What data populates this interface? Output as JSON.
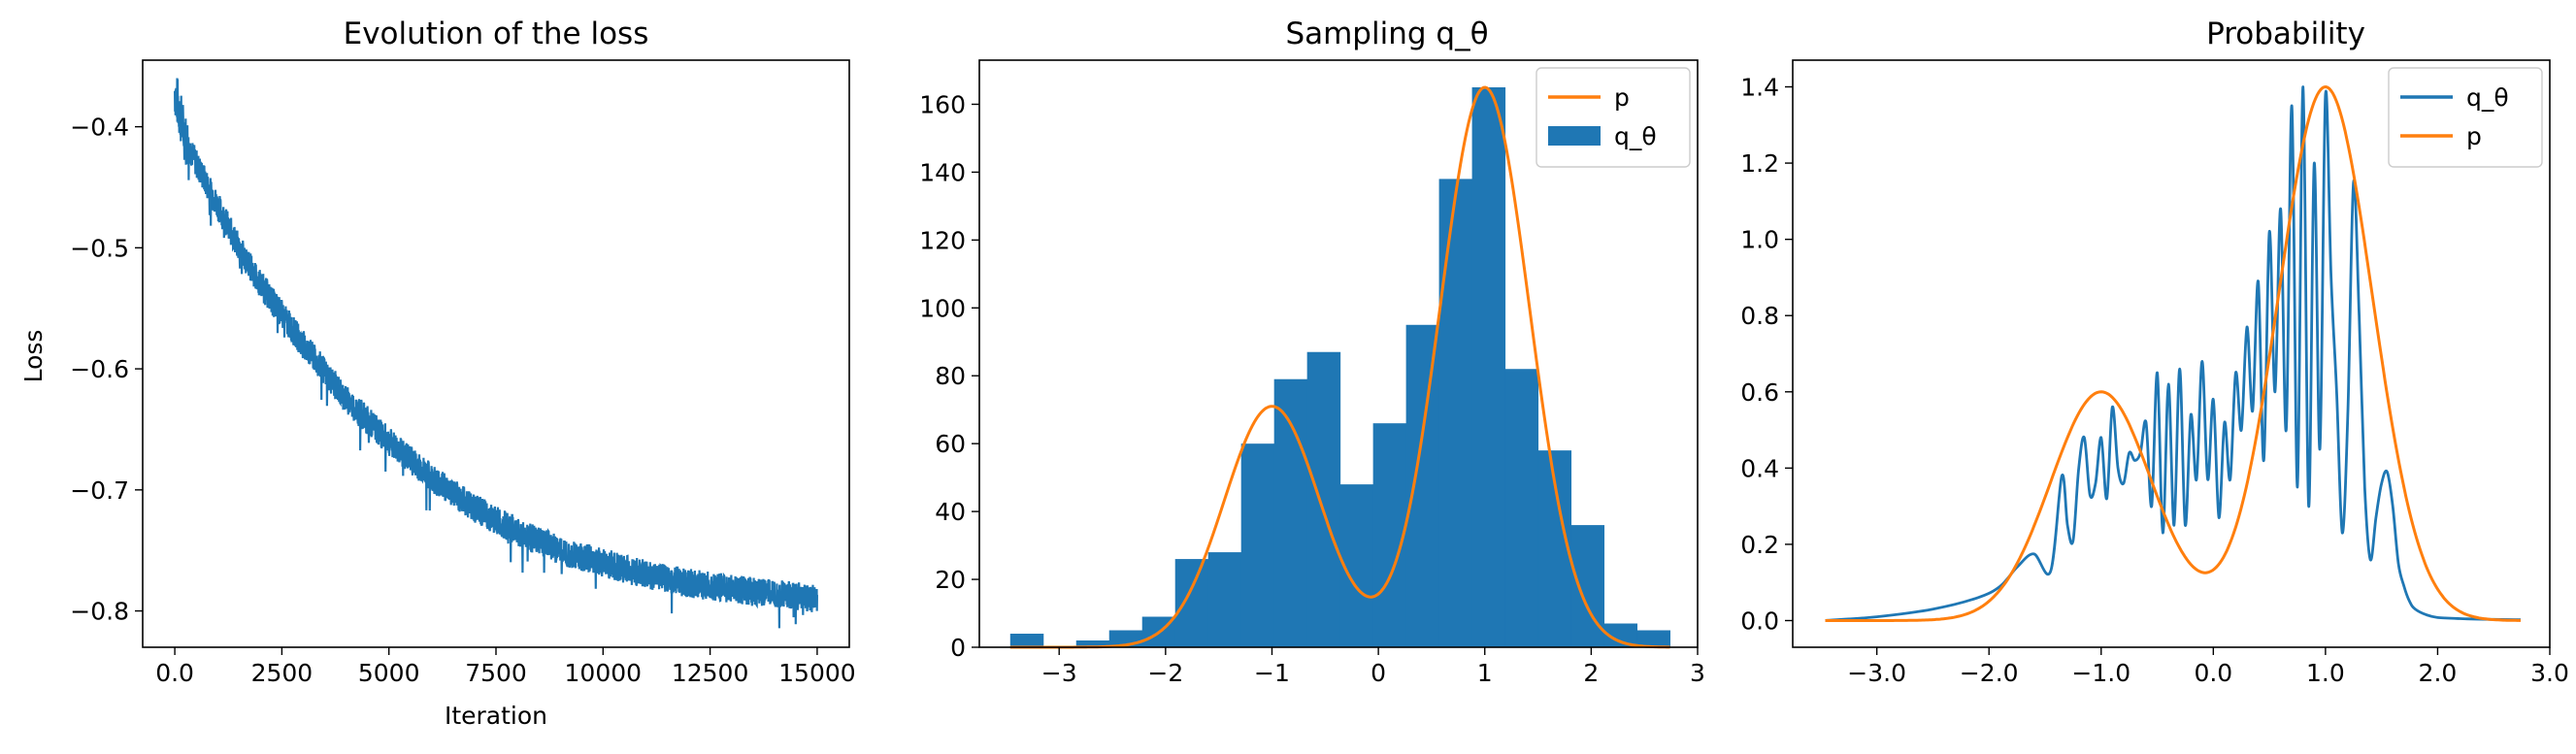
{
  "colors": {
    "blue": "#1f77b4",
    "orange": "#ff7f0e"
  },
  "chart_data": [
    {
      "type": "line",
      "title": "Evolution of the loss",
      "xlabel": "Iteration",
      "ylabel": "Loss",
      "xlim": [
        -750,
        15750
      ],
      "ylim": [
        -0.83,
        -0.345
      ],
      "xticks": [
        0,
        2500,
        5000,
        7500,
        10000,
        12500,
        15000
      ],
      "yticks": [
        -0.8,
        -0.7,
        -0.6,
        -0.5,
        -0.4
      ],
      "series": [
        {
          "color": "#1f77b4",
          "x": [
            0,
            250,
            500,
            1000,
            1500,
            2000,
            2500,
            3000,
            4000,
            5000,
            6000,
            7000,
            8000,
            9000,
            10000,
            11000,
            12000,
            13000,
            14000,
            15000
          ],
          "y": [
            -0.37,
            -0.41,
            -0.43,
            -0.465,
            -0.5,
            -0.53,
            -0.555,
            -0.58,
            -0.625,
            -0.66,
            -0.69,
            -0.715,
            -0.735,
            -0.75,
            -0.76,
            -0.77,
            -0.777,
            -0.782,
            -0.786,
            -0.79
          ],
          "noise": 0.012
        }
      ],
      "grid": false
    },
    {
      "type": "bar",
      "title": "Sampling q_θ",
      "xlim": [
        -3.75,
        3.0
      ],
      "ylim": [
        0,
        173
      ],
      "xticks": [
        -3,
        -2,
        -1,
        0,
        1,
        2,
        3
      ],
      "yticks": [
        0,
        20,
        40,
        60,
        80,
        100,
        120,
        140,
        160
      ],
      "bins": {
        "edges": [
          -3.46,
          -3.15,
          -2.84,
          -2.53,
          -2.22,
          -1.91,
          -1.6,
          -1.29,
          -0.98,
          -0.67,
          -0.36,
          -0.05,
          0.26,
          0.57,
          0.88,
          1.19,
          1.5,
          1.81,
          2.12,
          2.43,
          2.74
        ],
        "counts": [
          4,
          0,
          2,
          5,
          9,
          26,
          28,
          60,
          79,
          87,
          48,
          66,
          95,
          138,
          165,
          82,
          58,
          36,
          7,
          5
        ]
      },
      "series": [
        {
          "name": "p",
          "color": "#ff7f0e",
          "kind": "mixture",
          "components": [
            [
              -1.0,
              0.45,
              71
            ],
            [
              1.0,
              0.42,
              165
            ]
          ]
        },
        {
          "name": "q_θ",
          "color": "#1f77b4",
          "kind": "hist"
        }
      ],
      "legend": "top-right"
    },
    {
      "type": "line",
      "title": "Probability",
      "xlim": [
        -3.75,
        3.0
      ],
      "ylim": [
        -0.07,
        1.47
      ],
      "xticks": [
        -3,
        -2,
        -1,
        0,
        1,
        2,
        3
      ],
      "yticks": [
        0.0,
        0.2,
        0.4,
        0.6,
        0.8,
        1.0,
        1.2,
        1.4
      ],
      "series": [
        {
          "name": "q_θ",
          "color": "#1f77b4",
          "x": [
            -3.46,
            -3.0,
            -2.5,
            -2.1,
            -1.9,
            -1.75,
            -1.6,
            -1.45,
            -1.35,
            -1.3,
            -1.25,
            -1.2,
            -1.15,
            -1.1,
            -1.05,
            -1.0,
            -0.95,
            -0.9,
            -0.85,
            -0.8,
            -0.75,
            -0.7,
            -0.65,
            -0.6,
            -0.55,
            -0.5,
            -0.45,
            -0.4,
            -0.35,
            -0.3,
            -0.25,
            -0.2,
            -0.15,
            -0.1,
            -0.05,
            0.0,
            0.05,
            0.1,
            0.15,
            0.2,
            0.25,
            0.3,
            0.35,
            0.4,
            0.45,
            0.5,
            0.55,
            0.6,
            0.65,
            0.7,
            0.75,
            0.8,
            0.85,
            0.9,
            0.95,
            1.0,
            1.05,
            1.1,
            1.15,
            1.2,
            1.25,
            1.3,
            1.35,
            1.4,
            1.45,
            1.5,
            1.55,
            1.6,
            1.65,
            1.7,
            1.75,
            1.8,
            1.9,
            2.0,
            2.2,
            2.5,
            2.74
          ],
          "y": [
            0.0,
            0.01,
            0.03,
            0.06,
            0.09,
            0.14,
            0.175,
            0.13,
            0.38,
            0.25,
            0.21,
            0.4,
            0.48,
            0.33,
            0.36,
            0.48,
            0.32,
            0.56,
            0.4,
            0.36,
            0.44,
            0.42,
            0.44,
            0.52,
            0.3,
            0.65,
            0.23,
            0.62,
            0.25,
            0.66,
            0.25,
            0.54,
            0.37,
            0.68,
            0.37,
            0.58,
            0.27,
            0.52,
            0.37,
            0.65,
            0.5,
            0.77,
            0.55,
            0.89,
            0.42,
            1.02,
            0.6,
            1.08,
            0.5,
            1.35,
            0.35,
            1.4,
            0.3,
            1.2,
            0.45,
            1.38,
            0.9,
            0.6,
            0.23,
            0.55,
            1.15,
            0.8,
            0.35,
            0.16,
            0.27,
            0.36,
            0.39,
            0.3,
            0.15,
            0.09,
            0.05,
            0.03,
            0.015,
            0.008,
            0.005,
            0.003,
            0.002
          ]
        },
        {
          "name": "p",
          "color": "#ff7f0e",
          "kind": "mixture",
          "components": [
            [
              -1.0,
              0.45,
              0.6
            ],
            [
              1.0,
              0.42,
              1.4
            ]
          ]
        }
      ],
      "legend": "top-right"
    }
  ]
}
